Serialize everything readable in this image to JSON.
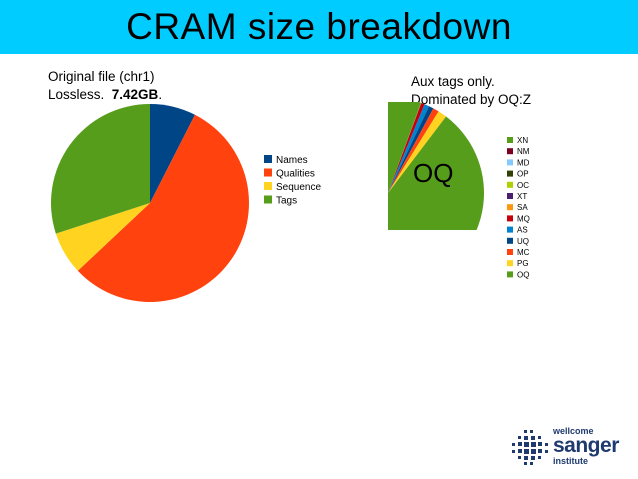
{
  "slide": {
    "title": "CRAM size breakdown",
    "title_bg": "#00ccff"
  },
  "note_left": {
    "line1": "Original file (chr1)",
    "line2_prefix": "Lossless.  ",
    "line2_bold": "7.42GB",
    "line2_suffix": "."
  },
  "note_right": {
    "line1": "Aux tags only.",
    "line2": "Dominated by OQ:Z"
  },
  "chart_data": [
    {
      "type": "pie",
      "title": "",
      "legend_position": "right",
      "series": [
        {
          "name": "Names",
          "value": 7.5,
          "color": "#004586"
        },
        {
          "name": "Qualities",
          "value": 55.5,
          "color": "#ff420e"
        },
        {
          "name": "Sequence",
          "value": 7,
          "color": "#ffd320"
        },
        {
          "name": "Tags",
          "value": 30,
          "color": "#579d1c"
        }
      ]
    },
    {
      "type": "pie",
      "title": "",
      "legend_position": "right",
      "annotation": "OQ",
      "series": [
        {
          "name": "XN",
          "value": 0.01,
          "color": "#579d1c"
        },
        {
          "name": "NM",
          "value": 0.01,
          "color": "#7e0021"
        },
        {
          "name": "MD",
          "value": 0.01,
          "color": "#83caff"
        },
        {
          "name": "OP",
          "value": 0.01,
          "color": "#314004"
        },
        {
          "name": "OC",
          "value": 0.01,
          "color": "#aecf00"
        },
        {
          "name": "XT",
          "value": 0.01,
          "color": "#4b1f6f"
        },
        {
          "name": "SA",
          "value": 0.01,
          "color": "#ff950e"
        },
        {
          "name": "MQ",
          "value": 0.6,
          "color": "#c5000b"
        },
        {
          "name": "AS",
          "value": 0.8,
          "color": "#0084d1"
        },
        {
          "name": "UQ",
          "value": 0.8,
          "color": "#004586"
        },
        {
          "name": "MC",
          "value": 1.0,
          "color": "#ff420e"
        },
        {
          "name": "PG",
          "value": 1.5,
          "color": "#ffd320"
        },
        {
          "name": "OQ",
          "value": 95.24,
          "color": "#579d1c"
        }
      ]
    }
  ],
  "logo": {
    "line1": "wellcome",
    "line2": "sanger",
    "line3": "institute"
  }
}
